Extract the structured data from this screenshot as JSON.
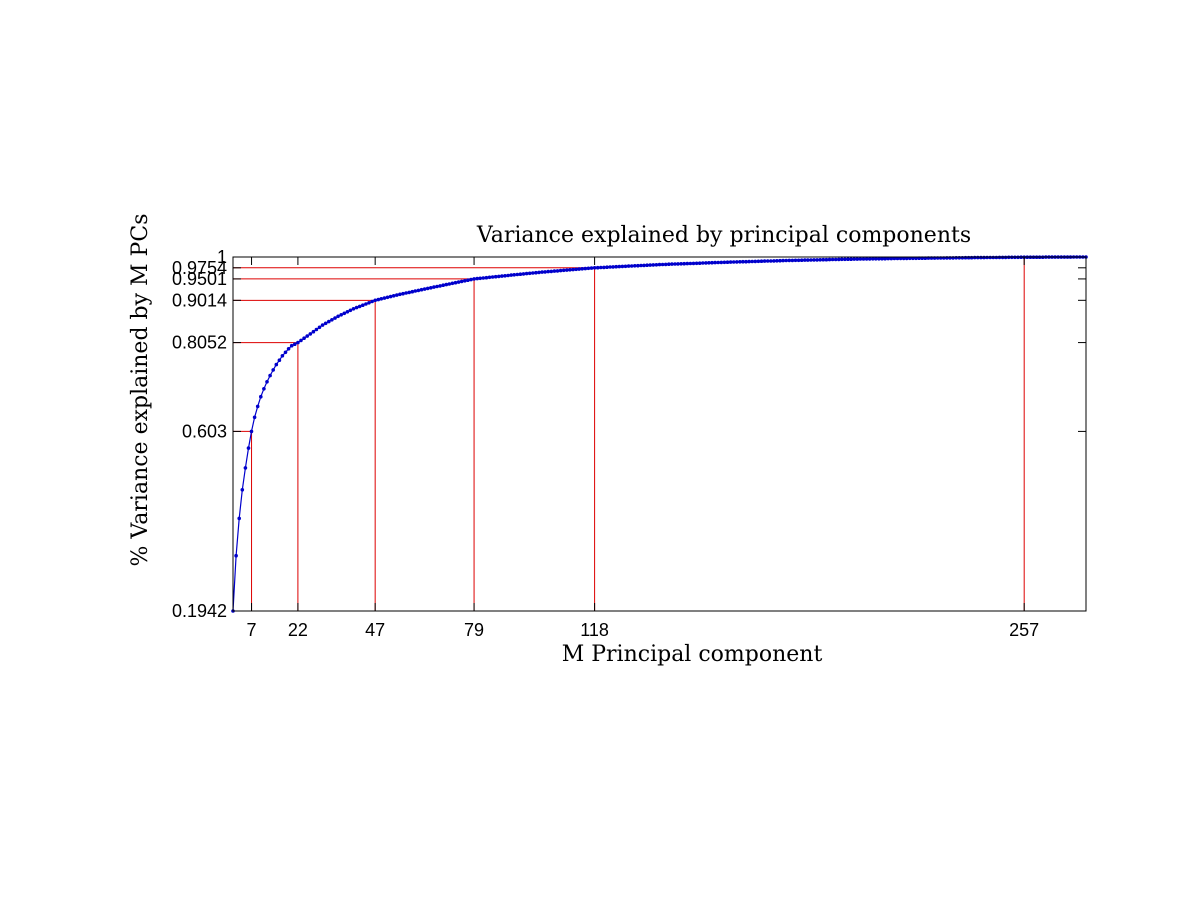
{
  "chart_data": {
    "type": "line",
    "title": "Variance explained by principal components",
    "xlabel": "M Principal component",
    "ylabel": "% Variance explained by M PCs",
    "xlim": [
      1,
      277
    ],
    "ylim": [
      0.1942,
      1
    ],
    "x_ticks": [
      7,
      22,
      47,
      79,
      118,
      257
    ],
    "y_ticks": [
      0.1942,
      0.603,
      0.8052,
      0.9014,
      0.9501,
      0.9754,
      1
    ],
    "y_tick_labels": [
      "0.1942",
      "0.603",
      "0.8052",
      "0.9014",
      "0.9501",
      "0.9754",
      "1"
    ],
    "series": [
      {
        "color": "#0000cc",
        "marker": "dot",
        "x": [
          1,
          2,
          3,
          4,
          5,
          6,
          7,
          8,
          9,
          10,
          11,
          12,
          13,
          14,
          15,
          16,
          17,
          18,
          19,
          20,
          22,
          25,
          30,
          35,
          40,
          47,
          55,
          65,
          79,
          90,
          100,
          118,
          140,
          160,
          180,
          200,
          220,
          240,
          257,
          277
        ],
        "y": [
          0.1942,
          0.32,
          0.405,
          0.47,
          0.52,
          0.565,
          0.603,
          0.635,
          0.66,
          0.682,
          0.7,
          0.716,
          0.73,
          0.743,
          0.755,
          0.765,
          0.775,
          0.783,
          0.791,
          0.798,
          0.8052,
          0.82,
          0.845,
          0.865,
          0.882,
          0.9014,
          0.915,
          0.93,
          0.9501,
          0.958,
          0.965,
          0.9754,
          0.983,
          0.988,
          0.992,
          0.995,
          0.997,
          0.9985,
          0.9995,
          1
        ]
      }
    ],
    "reference_points": [
      {
        "x": 7,
        "y": 0.603
      },
      {
        "x": 22,
        "y": 0.8052
      },
      {
        "x": 47,
        "y": 0.9014
      },
      {
        "x": 79,
        "y": 0.9501
      },
      {
        "x": 118,
        "y": 0.9754
      },
      {
        "x": 257,
        "y": 1
      }
    ],
    "reference_line_color": "#dd0000",
    "grid": false,
    "legend": "none"
  }
}
